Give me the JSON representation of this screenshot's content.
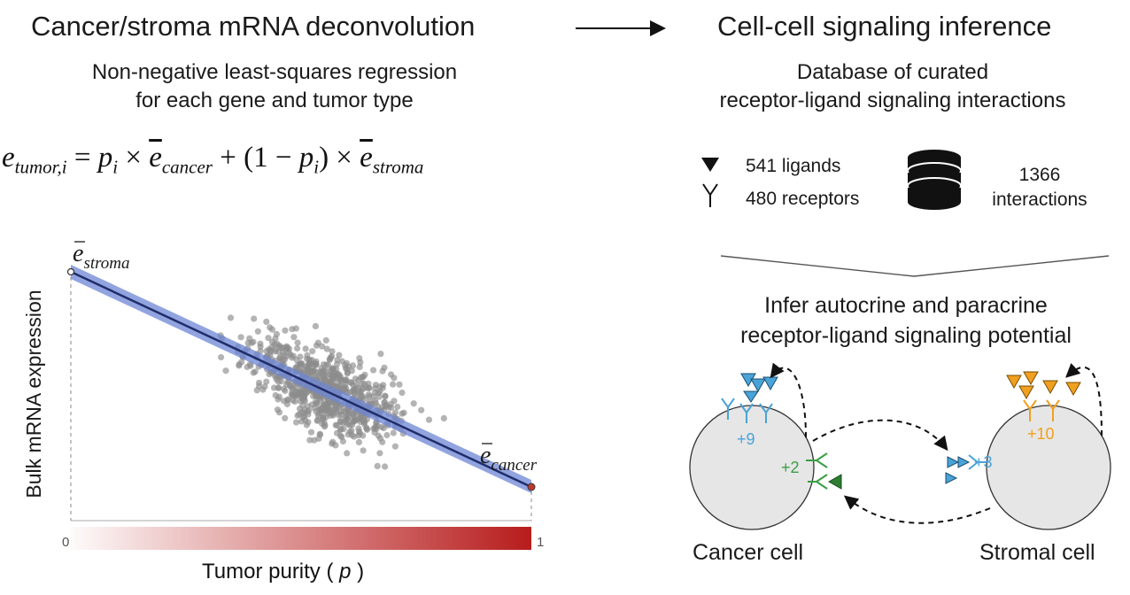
{
  "left": {
    "title": "Cancer/stroma mRNA deconvolution",
    "subtitle_line1": "Non-negative least-squares regression",
    "subtitle_line2": "for each gene and tumor type",
    "equation": {
      "lhs_var": "e",
      "lhs_sub": "tumor,i",
      "p": "p",
      "p_sub": "i",
      "e": "e",
      "cancer_sub": "cancer",
      "stroma_sub": "stroma",
      "one": "1"
    },
    "plot": {
      "ylabel": "Bulk mRNA expression",
      "xlabel_prefix": "Tumor purity ( ",
      "xlabel_var": "p",
      "xlabel_suffix": " )",
      "x_min_label": "0",
      "x_max_label": "1",
      "stroma_label_var": "e",
      "stroma_label_sub": "stroma",
      "cancer_label_var": "e",
      "cancer_label_sub": "cancer",
      "colors": {
        "points": "#8c8c8c",
        "line": "#1f2d6b",
        "band": "#6d86d6",
        "gradient": "#b71c1c"
      }
    }
  },
  "arrow": {
    "color": "#111111"
  },
  "right": {
    "title": "Cell-cell signaling inference",
    "subtitle_line1": "Database of curated",
    "subtitle_line2": "receptor-ligand signaling interactions",
    "ligands": "541 ligands",
    "receptors": "480 receptors",
    "interactions_count": "1366",
    "interactions_label": "interactions",
    "icons": [
      "ligand-triangle-icon",
      "receptor-y-icon",
      "database-icon"
    ],
    "infer_line1": "Infer autocrine and paracrine",
    "infer_line2": "receptor-ligand signaling potential",
    "cancer_cell_label": "Cancer cell",
    "stromal_cell_label": "Stromal cell",
    "counts": {
      "cancer_autocrine": "+9",
      "cancer_paracrine": "+2",
      "stromal_paracrine": "+3",
      "stromal_autocrine": "+10"
    },
    "colors": {
      "blue": "#4aa3d8",
      "green": "#3a9e45",
      "orange": "#f0a020",
      "cell_fill": "#e6e6e6"
    }
  }
}
